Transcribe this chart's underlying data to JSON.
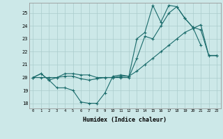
{
  "title": "",
  "xlabel": "Humidex (Indice chaleur)",
  "bg_color": "#cce8e8",
  "grid_color": "#aacccc",
  "line_color": "#1a6b6b",
  "xlim": [
    -0.5,
    23.5
  ],
  "ylim": [
    17.6,
    25.8
  ],
  "yticks": [
    18,
    19,
    20,
    21,
    22,
    23,
    24,
    25
  ],
  "xticks": [
    0,
    1,
    2,
    3,
    4,
    5,
    6,
    7,
    8,
    9,
    10,
    11,
    12,
    13,
    14,
    15,
    16,
    17,
    18,
    19,
    20,
    21,
    22,
    23
  ],
  "line1_x": [
    0,
    1,
    2,
    3,
    4,
    5,
    6,
    7,
    8,
    9,
    10,
    11,
    12,
    13,
    14,
    15,
    16,
    17,
    18,
    19,
    20,
    21
  ],
  "line1_y": [
    20.0,
    20.3,
    19.8,
    19.2,
    19.2,
    19.0,
    18.1,
    18.0,
    18.0,
    18.8,
    20.1,
    20.2,
    20.1,
    23.0,
    23.5,
    25.6,
    24.3,
    25.6,
    25.5,
    24.6,
    23.9,
    22.5
  ],
  "line2_x": [
    0,
    1,
    2,
    3,
    4,
    5,
    6,
    7,
    8,
    9,
    10,
    11,
    12,
    13,
    14,
    15,
    16,
    17,
    18,
    19,
    20,
    21,
    22,
    23
  ],
  "line2_y": [
    20.0,
    20.0,
    20.0,
    20.0,
    20.1,
    20.1,
    19.9,
    19.8,
    19.9,
    20.0,
    20.0,
    20.1,
    20.1,
    20.5,
    21.0,
    21.5,
    22.0,
    22.5,
    23.0,
    23.5,
    23.8,
    24.1,
    21.7,
    21.7
  ],
  "line3_x": [
    0,
    1,
    2,
    3,
    4,
    5,
    6,
    7,
    8,
    9,
    10,
    11,
    12,
    13,
    14,
    15,
    16,
    17,
    18,
    19,
    20,
    21,
    22,
    23
  ],
  "line3_y": [
    20.0,
    20.3,
    19.8,
    20.0,
    20.3,
    20.3,
    20.2,
    20.2,
    20.0,
    20.0,
    20.0,
    20.0,
    20.0,
    21.5,
    23.2,
    23.0,
    24.0,
    25.0,
    25.5,
    24.6,
    23.9,
    23.7,
    21.7,
    21.7
  ]
}
